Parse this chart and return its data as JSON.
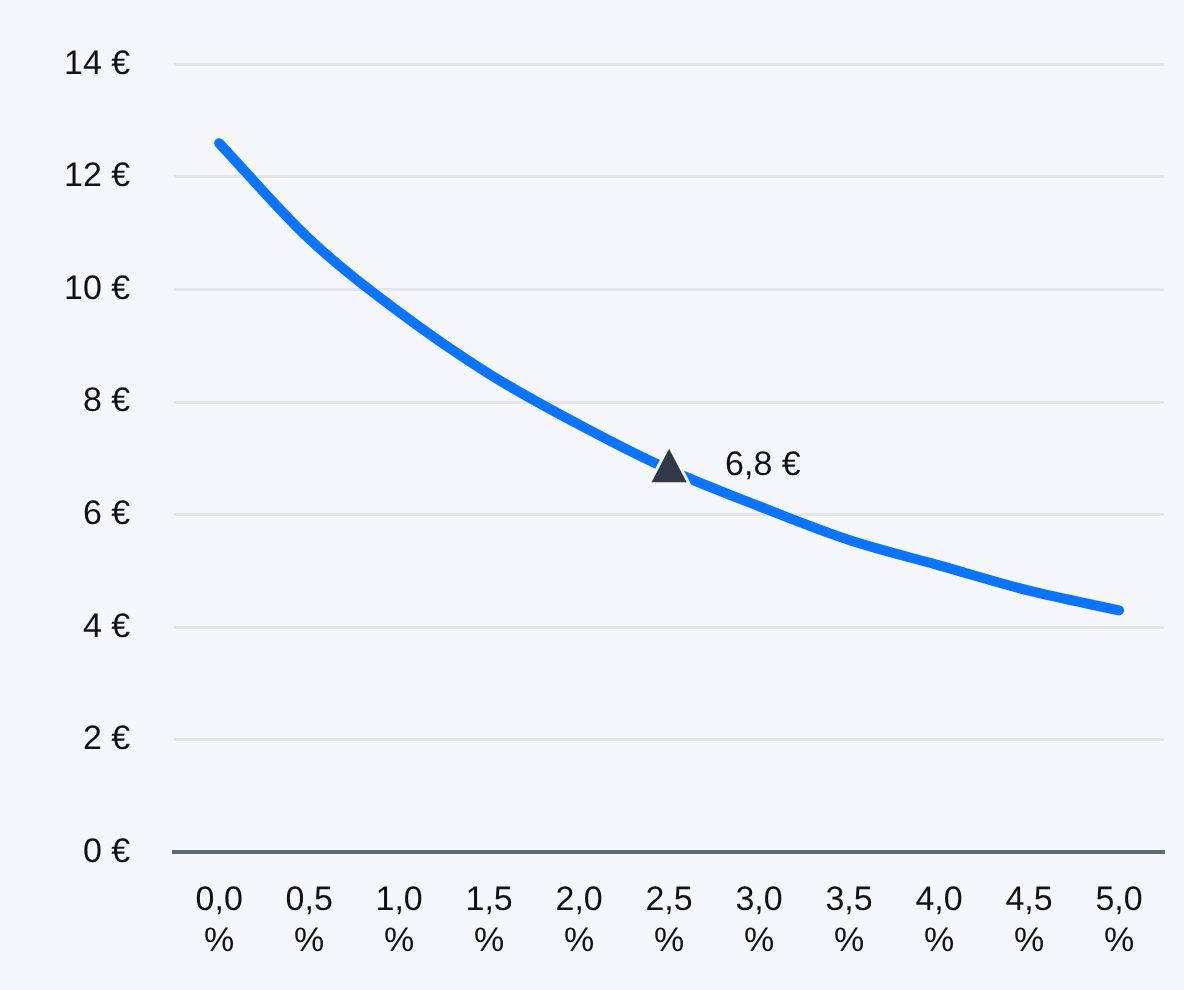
{
  "chart_data": {
    "type": "line",
    "categories": [
      "0,0 %",
      "0,5 %",
      "1,0 %",
      "1,5 %",
      "2,0 %",
      "2,5 %",
      "3,0 %",
      "3,5 %",
      "4,0 %",
      "4,5 %",
      "5,0 %"
    ],
    "series": [
      {
        "color": "#0a74ff",
        "values": [
          12.6,
          10.9,
          9.6,
          8.5,
          7.6,
          6.8,
          6.15,
          5.55,
          5.1,
          4.65,
          4.3
        ]
      }
    ],
    "ylim": [
      0,
      14
    ],
    "yticks": [
      {
        "value": 0,
        "label": "0 €"
      },
      {
        "value": 2,
        "label": "2 €"
      },
      {
        "value": 4,
        "label": "4 €"
      },
      {
        "value": 6,
        "label": "6 €"
      },
      {
        "value": 8,
        "label": "8 €"
      },
      {
        "value": 10,
        "label": "10 €"
      },
      {
        "value": 12,
        "label": "12 €"
      },
      {
        "value": 14,
        "label": "14 €"
      }
    ],
    "annotations": [
      {
        "text": "6,8 €",
        "x": "2,5 %",
        "y": 6.8
      }
    ],
    "grid": "y",
    "legend": false,
    "marker": "none",
    "line_style": "solid"
  }
}
